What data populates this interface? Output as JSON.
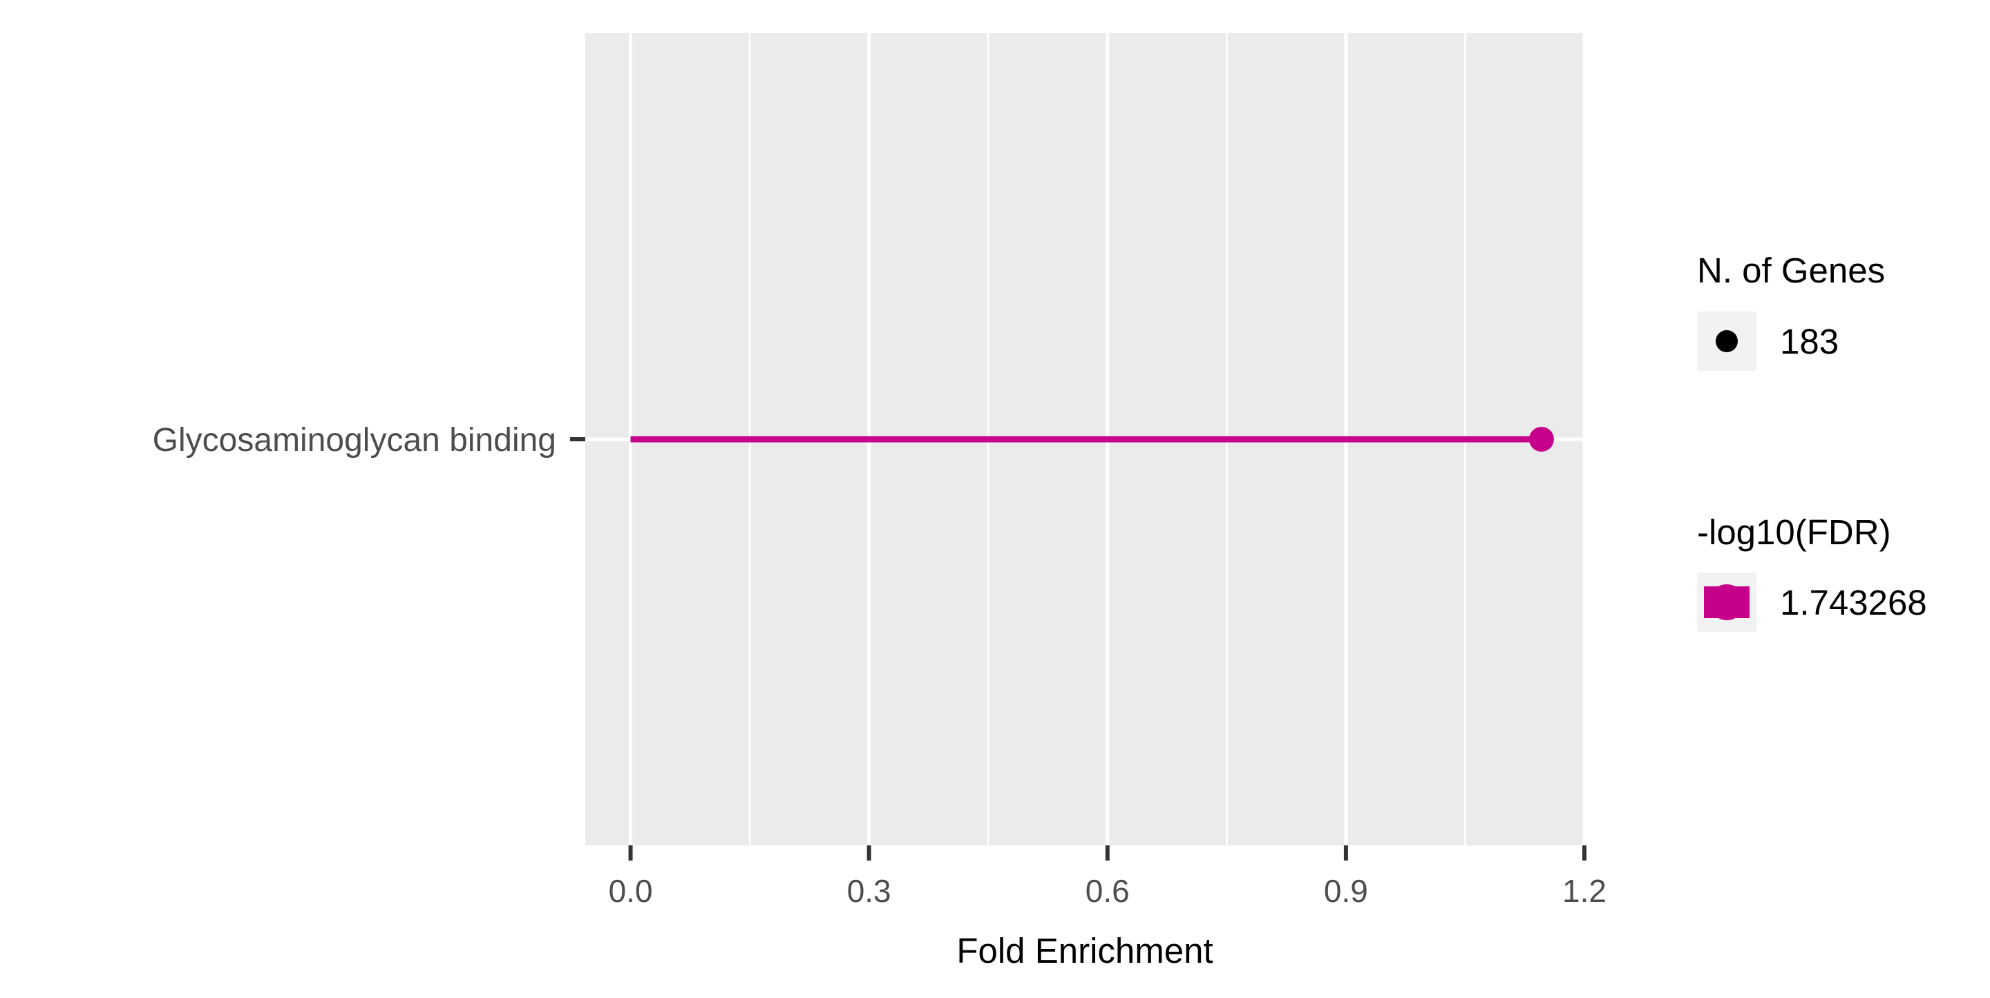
{
  "chart_data": {
    "type": "lollipop",
    "orientation": "horizontal",
    "categories": [
      "Glycosaminoglycan binding"
    ],
    "values": [
      1.146
    ],
    "genes": [
      183
    ],
    "neg_log10_fdr": [
      1.743268
    ],
    "xlabel": "Fold Enrichment",
    "ylabel": "",
    "xlim": [
      -0.057,
      1.2
    ],
    "xticks": [
      0.0,
      0.3,
      0.6,
      0.9,
      1.2
    ],
    "xtick_labels": [
      "0.0",
      "0.3",
      "0.6",
      "0.9",
      "1.2"
    ],
    "grid": true,
    "legend_position": "right",
    "legend": {
      "size_title": "N. of Genes",
      "size_label": "183",
      "color_title": "-log10(FDR)",
      "color_label": "1.743268"
    },
    "colors": {
      "series": "#c6008b",
      "panel_bg": "#ebebeb",
      "grid": "#ffffff",
      "size_key": "#000000"
    }
  }
}
